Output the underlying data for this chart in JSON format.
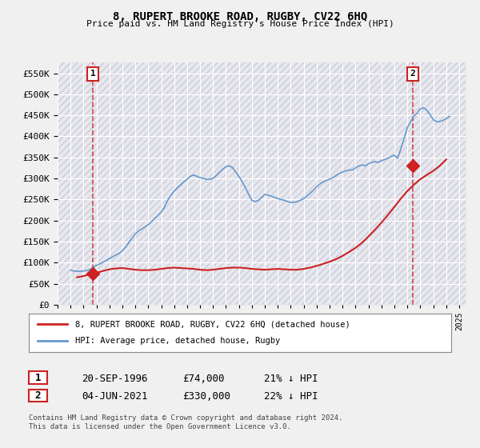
{
  "title": "8, RUPERT BROOKE ROAD, RUGBY, CV22 6HQ",
  "subtitle": "Price paid vs. HM Land Registry's House Price Index (HPI)",
  "ylabel_ticks": [
    "£0",
    "£50K",
    "£100K",
    "£150K",
    "£200K",
    "£250K",
    "£300K",
    "£350K",
    "£400K",
    "£450K",
    "£500K",
    "£550K"
  ],
  "ytick_values": [
    0,
    50000,
    100000,
    150000,
    200000,
    250000,
    300000,
    350000,
    400000,
    450000,
    500000,
    550000
  ],
  "ylim": [
    0,
    575000
  ],
  "xlim_start": 1994.0,
  "xlim_end": 2025.5,
  "background_color": "#f0f0f0",
  "plot_bg_color": "#e8e8f0",
  "hpi_color": "#6699cc",
  "price_color": "#cc2222",
  "marker1_date": 1996.72,
  "marker1_price": 74000,
  "marker1_label": "1",
  "marker2_date": 2021.42,
  "marker2_price": 330000,
  "marker2_label": "2",
  "legend_house_label": "8, RUPERT BROOKE ROAD, RUGBY, CV22 6HQ (detached house)",
  "legend_hpi_label": "HPI: Average price, detached house, Rugby",
  "table_row1": [
    "1",
    "20-SEP-1996",
    "£74,000",
    "21% ↓ HPI"
  ],
  "table_row2": [
    "2",
    "04-JUN-2021",
    "£330,000",
    "22% ↓ HPI"
  ],
  "footnote": "Contains HM Land Registry data © Crown copyright and database right 2024.\nThis data is licensed under the Open Government Licence v3.0.",
  "hpi_data_x": [
    1995.0,
    1995.25,
    1995.5,
    1995.75,
    1996.0,
    1996.25,
    1996.5,
    1996.75,
    1997.0,
    1997.25,
    1997.5,
    1997.75,
    1998.0,
    1998.25,
    1998.5,
    1998.75,
    1999.0,
    1999.25,
    1999.5,
    1999.75,
    2000.0,
    2000.25,
    2000.5,
    2000.75,
    2001.0,
    2001.25,
    2001.5,
    2001.75,
    2002.0,
    2002.25,
    2002.5,
    2002.75,
    2003.0,
    2003.25,
    2003.5,
    2003.75,
    2004.0,
    2004.25,
    2004.5,
    2004.75,
    2005.0,
    2005.25,
    2005.5,
    2005.75,
    2006.0,
    2006.25,
    2006.5,
    2006.75,
    2007.0,
    2007.25,
    2007.5,
    2007.75,
    2008.0,
    2008.25,
    2008.5,
    2008.75,
    2009.0,
    2009.25,
    2009.5,
    2009.75,
    2010.0,
    2010.25,
    2010.5,
    2010.75,
    2011.0,
    2011.25,
    2011.5,
    2011.75,
    2012.0,
    2012.25,
    2012.5,
    2012.75,
    2013.0,
    2013.25,
    2013.5,
    2013.75,
    2014.0,
    2014.25,
    2014.5,
    2014.75,
    2015.0,
    2015.25,
    2015.5,
    2015.75,
    2016.0,
    2016.25,
    2016.5,
    2016.75,
    2017.0,
    2017.25,
    2017.5,
    2017.75,
    2018.0,
    2018.25,
    2018.5,
    2018.75,
    2019.0,
    2019.25,
    2019.5,
    2019.75,
    2020.0,
    2020.25,
    2020.5,
    2020.75,
    2021.0,
    2021.25,
    2021.5,
    2021.75,
    2022.0,
    2022.25,
    2022.5,
    2022.75,
    2023.0,
    2023.25,
    2023.5,
    2023.75,
    2024.0,
    2024.25
  ],
  "hpi_data_y": [
    82000,
    80000,
    79000,
    79500,
    80000,
    81000,
    84000,
    88000,
    93000,
    97000,
    101000,
    105000,
    109000,
    114000,
    118000,
    122000,
    128000,
    137000,
    148000,
    158000,
    168000,
    175000,
    180000,
    185000,
    190000,
    197000,
    205000,
    212000,
    220000,
    232000,
    248000,
    260000,
    270000,
    278000,
    285000,
    292000,
    298000,
    305000,
    308000,
    305000,
    302000,
    300000,
    298000,
    298000,
    300000,
    307000,
    315000,
    322000,
    328000,
    330000,
    326000,
    315000,
    305000,
    292000,
    278000,
    262000,
    248000,
    245000,
    248000,
    255000,
    262000,
    260000,
    258000,
    255000,
    252000,
    250000,
    248000,
    245000,
    243000,
    243000,
    245000,
    248000,
    252000,
    258000,
    265000,
    272000,
    280000,
    287000,
    292000,
    295000,
    298000,
    302000,
    307000,
    312000,
    315000,
    318000,
    320000,
    320000,
    325000,
    330000,
    332000,
    330000,
    335000,
    338000,
    340000,
    338000,
    342000,
    345000,
    348000,
    352000,
    355000,
    348000,
    370000,
    395000,
    420000,
    435000,
    448000,
    455000,
    465000,
    468000,
    462000,
    452000,
    440000,
    435000,
    435000,
    438000,
    442000,
    448000
  ],
  "price_data_x": [
    1995.5,
    1996.0,
    1996.5,
    1997.0,
    1997.5,
    1998.0,
    1998.5,
    1999.0,
    1999.5,
    2000.0,
    2000.5,
    2001.0,
    2001.5,
    2002.0,
    2002.5,
    2003.0,
    2003.5,
    2004.0,
    2004.5,
    2005.0,
    2005.5,
    2006.0,
    2006.5,
    2007.0,
    2007.5,
    2008.0,
    2008.5,
    2009.0,
    2009.5,
    2010.0,
    2010.5,
    2011.0,
    2011.5,
    2012.0,
    2012.5,
    2013.0,
    2013.5,
    2014.0,
    2014.5,
    2015.0,
    2015.5,
    2016.0,
    2016.5,
    2017.0,
    2017.5,
    2018.0,
    2018.5,
    2019.0,
    2019.5,
    2020.0,
    2020.5,
    2021.0,
    2021.5,
    2022.0,
    2022.5,
    2023.0,
    2023.5,
    2024.0
  ],
  "price_data_y": [
    65000,
    68000,
    72000,
    76000,
    80000,
    84000,
    86000,
    87000,
    85000,
    83000,
    82000,
    82000,
    83000,
    85000,
    87000,
    88000,
    87000,
    86000,
    85000,
    83000,
    82000,
    83000,
    85000,
    87000,
    88000,
    88000,
    87000,
    85000,
    84000,
    83000,
    84000,
    85000,
    84000,
    83000,
    83000,
    85000,
    88000,
    92000,
    97000,
    102000,
    108000,
    116000,
    125000,
    135000,
    147000,
    162000,
    178000,
    195000,
    213000,
    232000,
    252000,
    270000,
    285000,
    298000,
    308000,
    318000,
    330000,
    345000
  ],
  "dashed_line1_x": 1996.72,
  "dashed_line2_x": 2021.42,
  "grid_color": "#ffffff",
  "hatch_color": "#d0d0d8"
}
